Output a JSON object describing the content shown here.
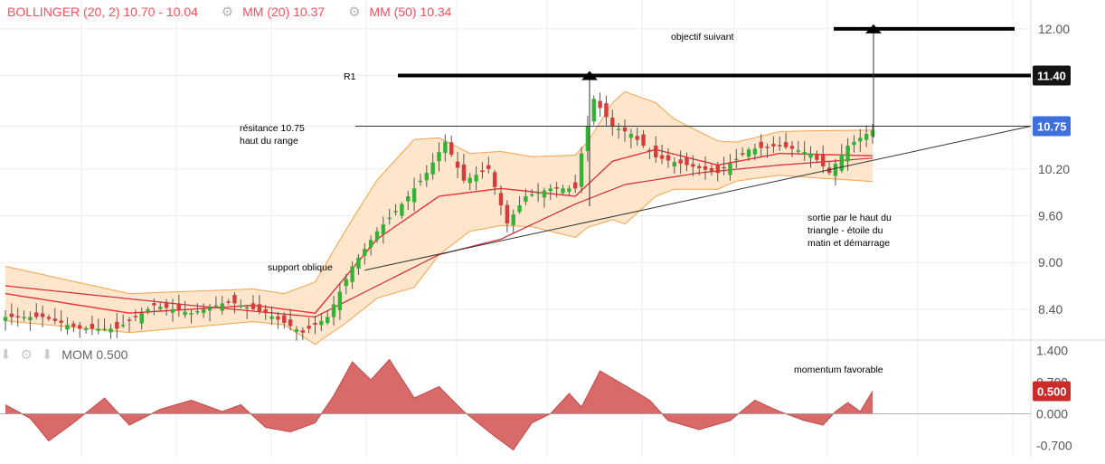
{
  "legend": {
    "bollinger": "BOLLINGER (20, 2) 10.70 - 10.04",
    "mm20": "MM (20) 10.37",
    "mm50": "MM (50) 10.34"
  },
  "momentum_legend": {
    "label": "MOM 0.500"
  },
  "colors": {
    "up": "#33b233",
    "down": "#d93a3a",
    "band_fill": "#fde6cc",
    "band_line": "#f4a24a",
    "mm20": "#e8303a",
    "mm50": "#d22a33",
    "mom_fill": "#d96a6a",
    "mom_line": "#c24a4a",
    "price_badge": "#3f6fdc",
    "r1_badge": "#141414",
    "mom_badge": "#cc2b2b",
    "grid": "#ececec"
  },
  "icons": [
    "gear-icon",
    "arrow-down-icon"
  ],
  "chart_data": [
    {
      "type": "candlestick",
      "price_axis": {
        "ticks": [
          "12.00",
          "11.40",
          "10.75",
          "10.20",
          "9.60",
          "9.00",
          "8.40"
        ],
        "tick_values": [
          12.0,
          11.4,
          10.75,
          10.2,
          9.6,
          9.0,
          8.4
        ],
        "range": [
          8.05,
          12.3
        ]
      },
      "badges": [
        {
          "label": "11.40",
          "value": 11.4,
          "color": "#141414"
        },
        {
          "label": "10.75",
          "value": 10.75,
          "color": "#3f6fdc"
        }
      ],
      "levels": {
        "r1": 11.4,
        "next_target": 12.0,
        "resistance": 10.75
      },
      "annotations": {
        "r1": "R1",
        "target": "objectif suivant",
        "resistance_1": "résitance 10.75",
        "resistance_2": "haut du range",
        "support": "support oblique",
        "breakout_1": "sortie par le haut du",
        "breakout_2": "triangle - étoile du",
        "breakout_3": "matin et démarrage"
      },
      "anchors": [
        {
          "i": 0,
          "close": 8.3
        },
        {
          "i": 6,
          "close": 8.3
        },
        {
          "i": 12,
          "close": 8.15
        },
        {
          "i": 18,
          "close": 8.15
        },
        {
          "i": 24,
          "close": 8.45
        },
        {
          "i": 30,
          "close": 8.35
        },
        {
          "i": 36,
          "close": 8.5
        },
        {
          "i": 42,
          "close": 8.35
        },
        {
          "i": 48,
          "close": 8.1
        },
        {
          "i": 52,
          "close": 8.3
        },
        {
          "i": 56,
          "close": 8.95
        },
        {
          "i": 60,
          "close": 9.4
        },
        {
          "i": 64,
          "close": 9.75
        },
        {
          "i": 68,
          "close": 10.15
        },
        {
          "i": 71,
          "close": 10.55
        },
        {
          "i": 74,
          "close": 10.05
        },
        {
          "i": 78,
          "close": 10.2
        },
        {
          "i": 81,
          "close": 9.5
        },
        {
          "i": 84,
          "close": 9.85
        },
        {
          "i": 88,
          "close": 9.95
        },
        {
          "i": 92,
          "close": 9.95
        },
        {
          "i": 93,
          "close": 10.4
        },
        {
          "i": 95,
          "close": 11.1
        },
        {
          "i": 98,
          "close": 10.75
        },
        {
          "i": 101,
          "close": 10.65
        },
        {
          "i": 105,
          "close": 10.35
        },
        {
          "i": 110,
          "close": 10.25
        },
        {
          "i": 115,
          "close": 10.15
        },
        {
          "i": 120,
          "close": 10.45
        },
        {
          "i": 125,
          "close": 10.5
        },
        {
          "i": 130,
          "close": 10.4
        },
        {
          "i": 133,
          "close": 10.15
        },
        {
          "i": 136,
          "close": 10.5
        },
        {
          "i": 140,
          "close": 10.7
        }
      ],
      "mm20_anchors": [
        {
          "i": 0,
          "v": 8.6
        },
        {
          "i": 20,
          "v": 8.35
        },
        {
          "i": 40,
          "v": 8.45
        },
        {
          "i": 50,
          "v": 8.35
        },
        {
          "i": 60,
          "v": 9.3
        },
        {
          "i": 70,
          "v": 9.85
        },
        {
          "i": 80,
          "v": 9.95
        },
        {
          "i": 92,
          "v": 9.85
        },
        {
          "i": 98,
          "v": 10.3
        },
        {
          "i": 105,
          "v": 10.45
        },
        {
          "i": 115,
          "v": 10.25
        },
        {
          "i": 125,
          "v": 10.4
        },
        {
          "i": 140,
          "v": 10.37
        }
      ],
      "mm50_anchors": [
        {
          "i": 0,
          "v": 8.7
        },
        {
          "i": 30,
          "v": 8.45
        },
        {
          "i": 50,
          "v": 8.3
        },
        {
          "i": 60,
          "v": 8.7
        },
        {
          "i": 70,
          "v": 9.1
        },
        {
          "i": 80,
          "v": 9.3
        },
        {
          "i": 92,
          "v": 9.75
        },
        {
          "i": 100,
          "v": 10.0
        },
        {
          "i": 112,
          "v": 10.15
        },
        {
          "i": 125,
          "v": 10.25
        },
        {
          "i": 140,
          "v": 10.34
        }
      ],
      "band_width_anchors": [
        {
          "i": 0,
          "v": 0.35
        },
        {
          "i": 20,
          "v": 0.25
        },
        {
          "i": 45,
          "v": 0.2
        },
        {
          "i": 55,
          "v": 0.6
        },
        {
          "i": 66,
          "v": 0.95
        },
        {
          "i": 75,
          "v": 0.5
        },
        {
          "i": 85,
          "v": 0.45
        },
        {
          "i": 94,
          "v": 0.55
        },
        {
          "i": 100,
          "v": 0.85
        },
        {
          "i": 108,
          "v": 0.45
        },
        {
          "i": 118,
          "v": 0.25
        },
        {
          "i": 130,
          "v": 0.3
        },
        {
          "i": 140,
          "v": 0.33
        }
      ],
      "triangle": {
        "support_start": {
          "i": 58,
          "v": 8.9
        },
        "support_end": {
          "i": 165,
          "v": 10.75
        },
        "resistance_start": {
          "i": 57,
          "v": 10.75
        }
      }
    },
    {
      "type": "area",
      "title": "MOM 0.500",
      "y_axis": {
        "ticks": [
          "1.400",
          "0.700",
          "0.000",
          "-0.700"
        ],
        "tick_values": [
          1.4,
          0.7,
          0.0,
          -0.7
        ],
        "range": [
          -0.95,
          1.55
        ]
      },
      "badge": {
        "label": "0.500",
        "value": 0.5
      },
      "annotation": "momentum favorable",
      "values_anchors": [
        {
          "i": 0,
          "v": 0.2
        },
        {
          "i": 4,
          "v": -0.1
        },
        {
          "i": 7,
          "v": -0.6
        },
        {
          "i": 11,
          "v": -0.2
        },
        {
          "i": 16,
          "v": 0.35
        },
        {
          "i": 20,
          "v": -0.25
        },
        {
          "i": 25,
          "v": 0.1
        },
        {
          "i": 30,
          "v": 0.3
        },
        {
          "i": 35,
          "v": 0.05
        },
        {
          "i": 38,
          "v": 0.2
        },
        {
          "i": 42,
          "v": -0.3
        },
        {
          "i": 46,
          "v": -0.4
        },
        {
          "i": 50,
          "v": -0.2
        },
        {
          "i": 53,
          "v": 0.4
        },
        {
          "i": 56,
          "v": 1.15
        },
        {
          "i": 59,
          "v": 0.75
        },
        {
          "i": 62,
          "v": 1.2
        },
        {
          "i": 66,
          "v": 0.35
        },
        {
          "i": 70,
          "v": 0.6
        },
        {
          "i": 74,
          "v": 0.05
        },
        {
          "i": 79,
          "v": -0.5
        },
        {
          "i": 82,
          "v": -0.8
        },
        {
          "i": 85,
          "v": -0.2
        },
        {
          "i": 88,
          "v": 0.0
        },
        {
          "i": 91,
          "v": 0.45
        },
        {
          "i": 93,
          "v": 0.15
        },
        {
          "i": 96,
          "v": 0.95
        },
        {
          "i": 101,
          "v": 0.55
        },
        {
          "i": 104,
          "v": 0.3
        },
        {
          "i": 107,
          "v": -0.15
        },
        {
          "i": 112,
          "v": -0.35
        },
        {
          "i": 117,
          "v": -0.15
        },
        {
          "i": 121,
          "v": 0.3
        },
        {
          "i": 125,
          "v": 0.05
        },
        {
          "i": 129,
          "v": -0.15
        },
        {
          "i": 132,
          "v": -0.25
        },
        {
          "i": 134,
          "v": 0.05
        },
        {
          "i": 136,
          "v": 0.25
        },
        {
          "i": 138,
          "v": 0.05
        },
        {
          "i": 140,
          "v": 0.5
        }
      ]
    }
  ]
}
